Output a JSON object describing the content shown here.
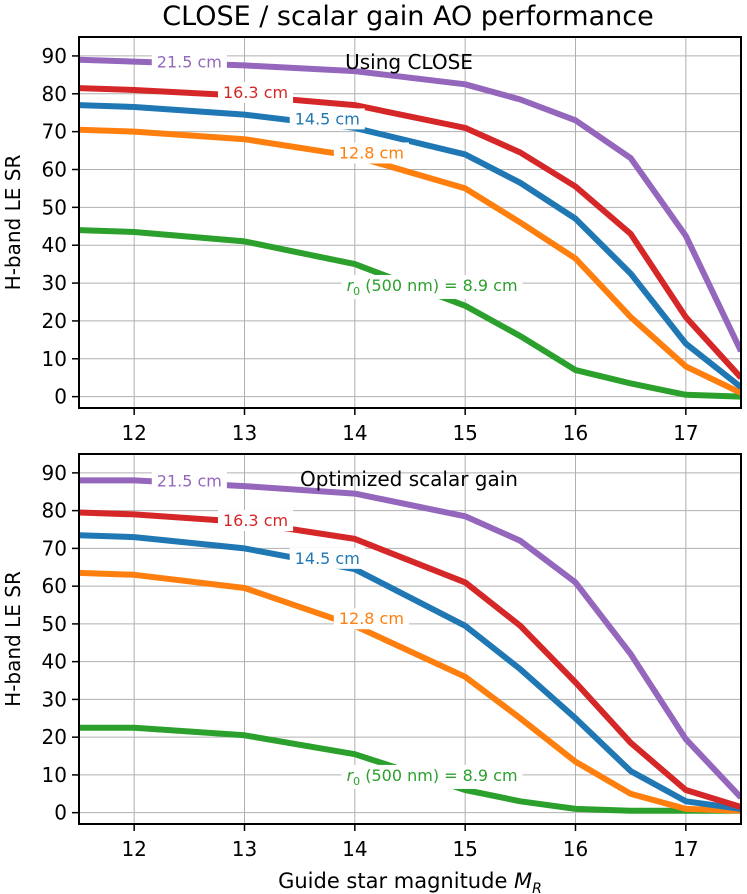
{
  "figure_title": "CLOSE / scalar gain AO performance",
  "chart_data": [
    {
      "type": "line",
      "title": "Using CLOSE",
      "xlabel": "",
      "ylabel": "H-band LE SR",
      "xlim": [
        11.5,
        17.5
      ],
      "ylim": [
        -3,
        95
      ],
      "xticks": [
        12,
        13,
        14,
        15,
        16,
        17
      ],
      "yticks": [
        0,
        10,
        20,
        30,
        40,
        50,
        60,
        70,
        80,
        90
      ],
      "grid": true,
      "x": [
        11.5,
        12,
        13,
        14,
        15,
        15.5,
        16,
        16.5,
        17,
        17.5
      ],
      "series": [
        {
          "name": "8.9 cm",
          "label": "r0 (500 nm) = 8.9 cm",
          "label_prefix": "r",
          "label_sub": "0",
          "label_rest": " (500 nm) = 8.9 cm",
          "color": "#2ca02c",
          "values": [
            44,
            43.5,
            41,
            35,
            24,
            16,
            7,
            3.5,
            0.5,
            0
          ]
        },
        {
          "name": "12.8 cm",
          "label": "12.8 cm",
          "color": "#ff7f0e",
          "values": [
            70.5,
            70,
            68,
            63.5,
            55,
            46,
            36.5,
            21,
            8,
            1
          ]
        },
        {
          "name": "14.5 cm",
          "label": "14.5 cm",
          "color": "#1f77b4",
          "values": [
            77,
            76.5,
            74.5,
            71,
            64,
            56.5,
            47,
            32.5,
            14,
            2.5
          ]
        },
        {
          "name": "16.3 cm",
          "label": "16.3 cm",
          "color": "#d62728",
          "values": [
            81.5,
            81,
            79.5,
            77,
            71,
            64.5,
            55.5,
            43,
            21,
            5
          ]
        },
        {
          "name": "21.5 cm",
          "label": "21.5 cm",
          "color": "#9467bd",
          "values": [
            89,
            88.5,
            87.5,
            86,
            82.5,
            78.5,
            73,
            63,
            42.5,
            12
          ]
        }
      ],
      "inline_labels": [
        {
          "series": 4,
          "x": 12.5,
          "y": 88.5
        },
        {
          "series": 3,
          "x": 13.1,
          "y": 80.5
        },
        {
          "series": 2,
          "x": 13.75,
          "y": 73.5
        },
        {
          "series": 1,
          "x": 14.15,
          "y": 64.5
        },
        {
          "series": 0,
          "x": 14.7,
          "y": 29.5
        }
      ]
    },
    {
      "type": "line",
      "title": "Optimized scalar gain",
      "xlabel": "Guide star magnitude M",
      "xlabel_sub": "R",
      "ylabel": "H-band LE SR",
      "xlim": [
        11.5,
        17.5
      ],
      "ylim": [
        -3,
        95
      ],
      "xticks": [
        12,
        13,
        14,
        15,
        16,
        17
      ],
      "yticks": [
        0,
        10,
        20,
        30,
        40,
        50,
        60,
        70,
        80,
        90
      ],
      "grid": true,
      "x": [
        11.5,
        12,
        13,
        14,
        15,
        15.5,
        16,
        16.5,
        17,
        17.5
      ],
      "series": [
        {
          "name": "8.9 cm",
          "label": "r0 (500 nm) = 8.9 cm",
          "label_prefix": "r",
          "label_sub": "0",
          "label_rest": " (500 nm) = 8.9 cm",
          "color": "#2ca02c",
          "values": [
            22.5,
            22.5,
            20.5,
            15.5,
            6,
            3,
            1,
            0.5,
            0.5,
            0.5
          ]
        },
        {
          "name": "12.8 cm",
          "label": "12.8 cm",
          "color": "#ff7f0e",
          "values": [
            63.5,
            63,
            59.5,
            49.5,
            36,
            25,
            13.5,
            5,
            1,
            0.5
          ]
        },
        {
          "name": "14.5 cm",
          "label": "14.5 cm",
          "color": "#1f77b4",
          "values": [
            73.5,
            73,
            70,
            64.5,
            49.5,
            38,
            25,
            11,
            3,
            1
          ]
        },
        {
          "name": "16.3 cm",
          "label": "16.3 cm",
          "color": "#d62728",
          "values": [
            79.5,
            79,
            77,
            72.5,
            61,
            49.5,
            34.5,
            18.5,
            6,
            1.5
          ]
        },
        {
          "name": "21.5 cm",
          "label": "21.5 cm",
          "color": "#9467bd",
          "values": [
            88,
            88,
            86.5,
            84.5,
            78.5,
            72,
            61,
            42,
            19.5,
            4
          ]
        }
      ],
      "inline_labels": [
        {
          "series": 4,
          "x": 12.5,
          "y": 88
        },
        {
          "series": 3,
          "x": 13.1,
          "y": 77.5
        },
        {
          "series": 2,
          "x": 13.75,
          "y": 67.5
        },
        {
          "series": 1,
          "x": 14.15,
          "y": 51.5
        },
        {
          "series": 0,
          "x": 14.7,
          "y": 10
        }
      ]
    }
  ]
}
